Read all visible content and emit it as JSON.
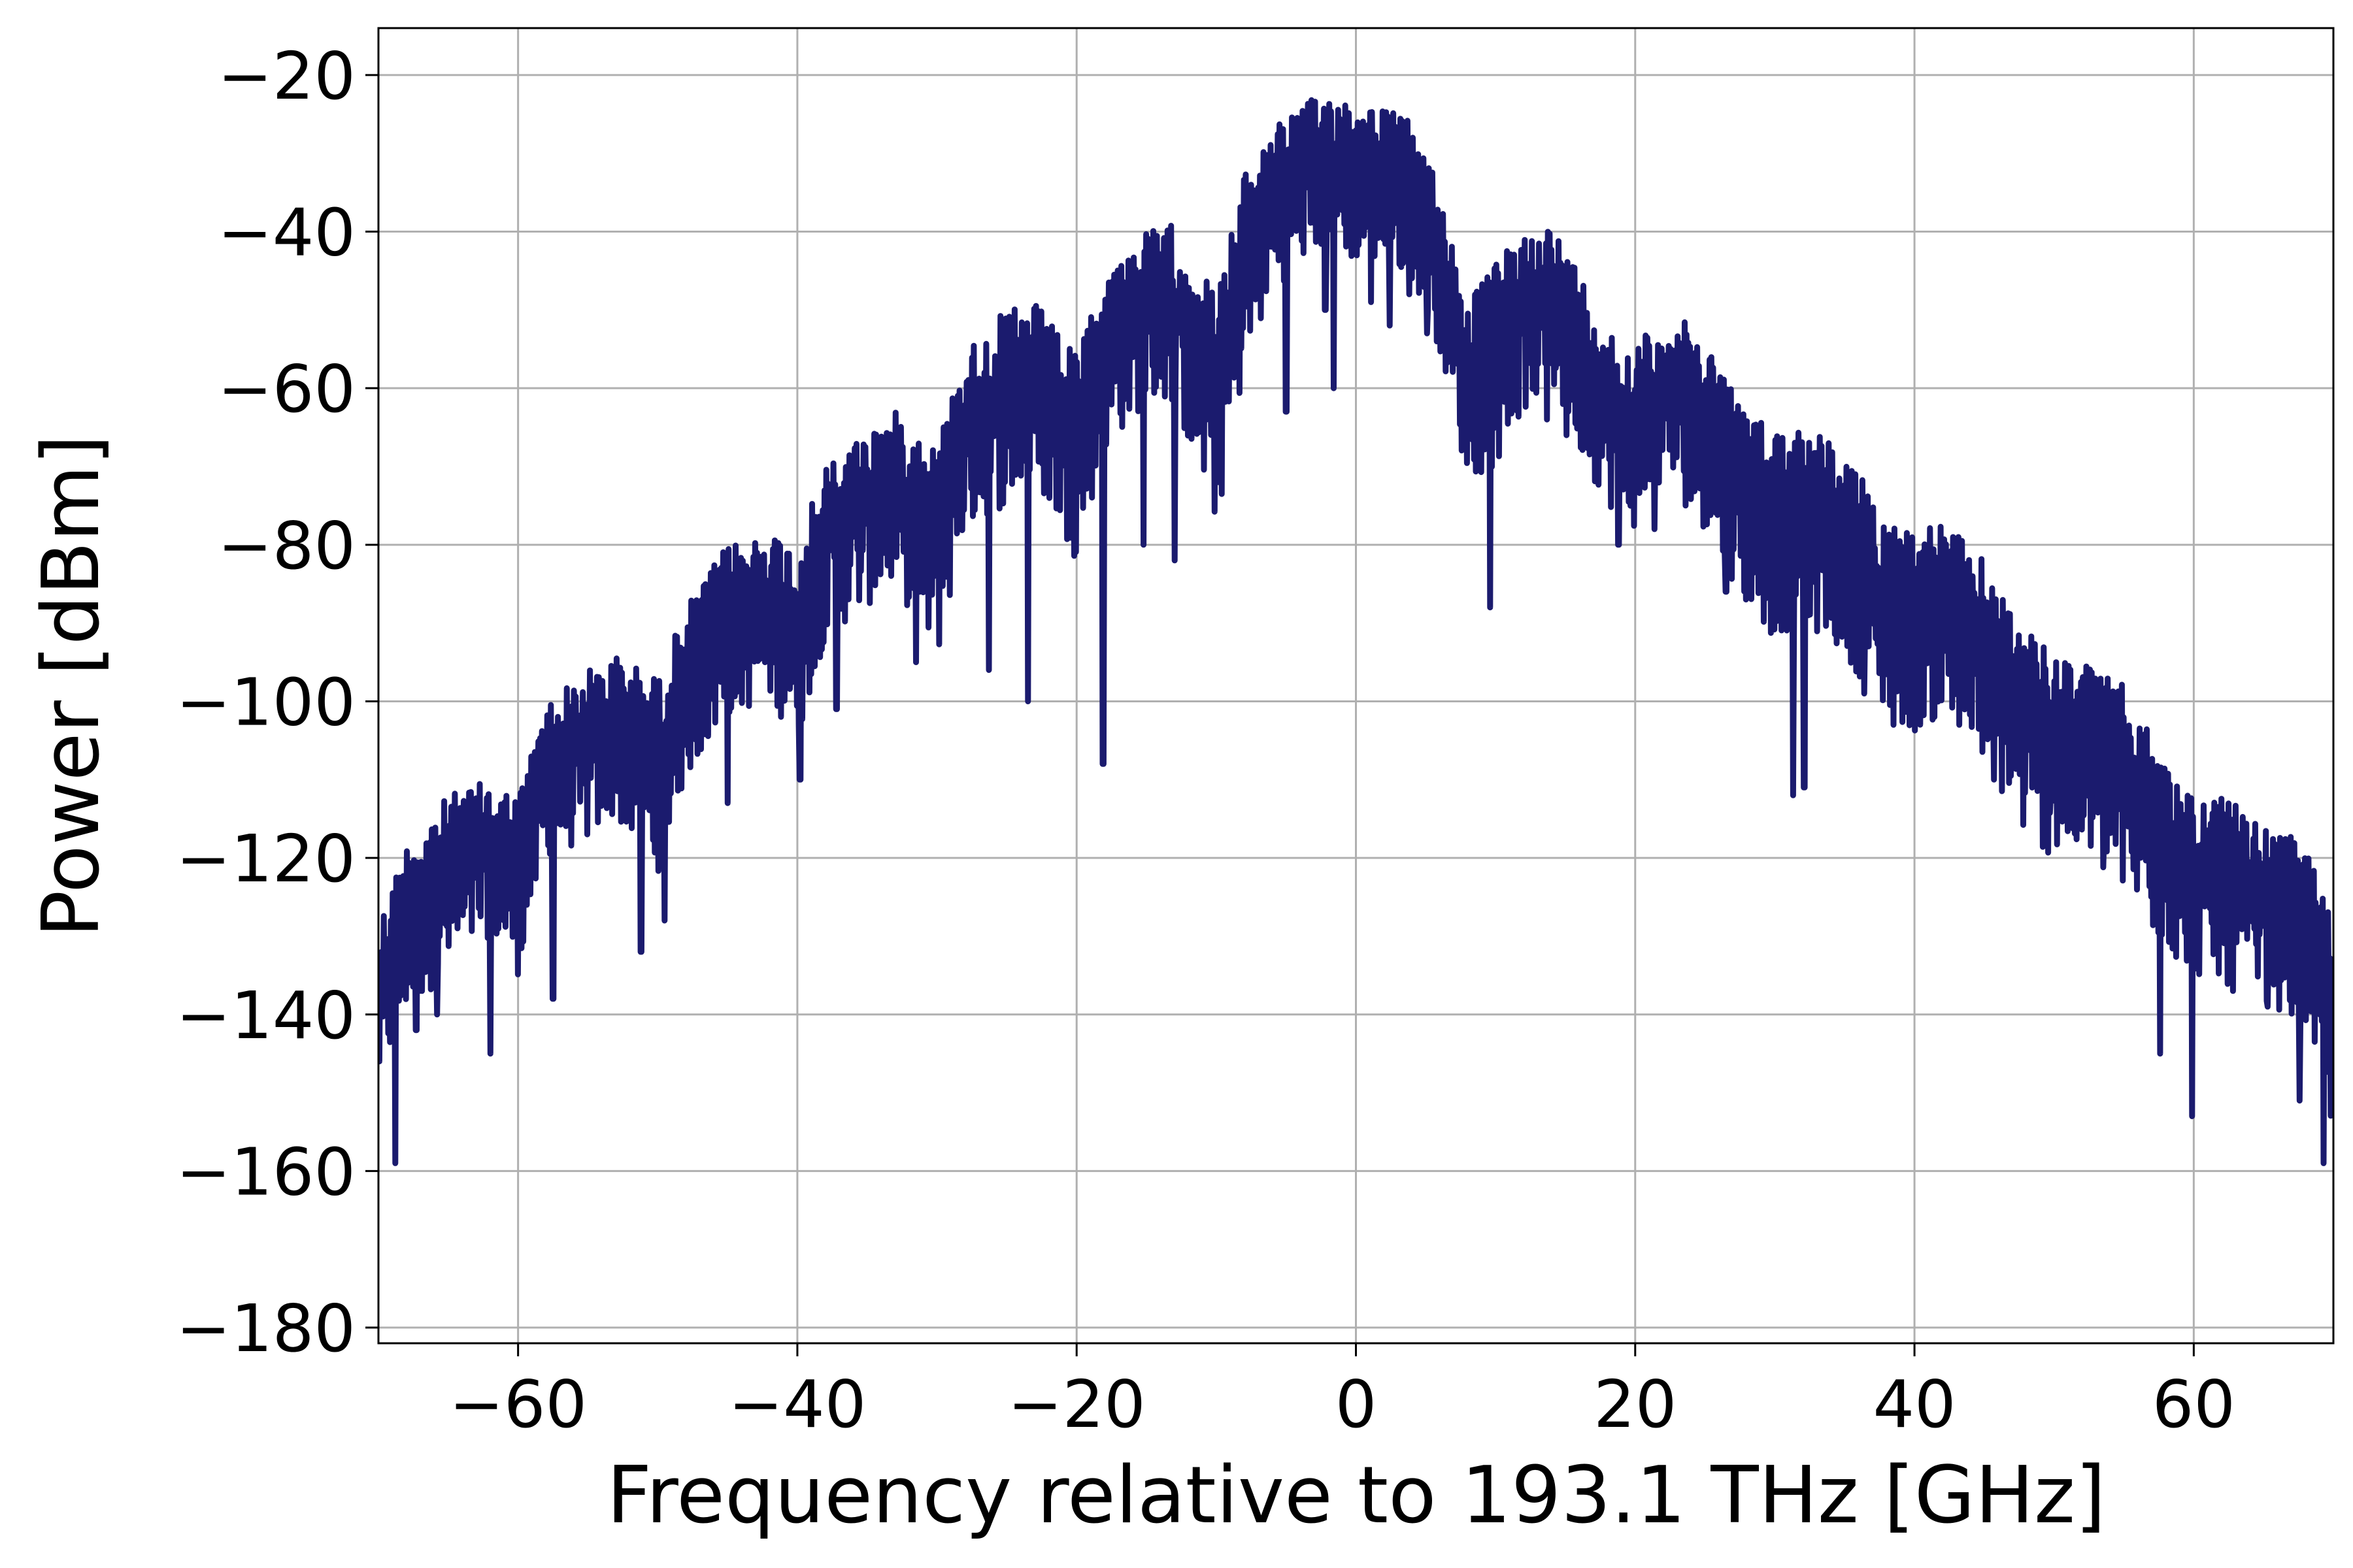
{
  "chart_data": {
    "type": "line",
    "title": "",
    "xlabel": "Frequency relative to 193.1 THz [GHz]",
    "ylabel": "Power [dBm]",
    "xlim": [
      -70,
      70
    ],
    "ylim": [
      -182,
      -14
    ],
    "xticks": [
      -60,
      -40,
      -20,
      0,
      20,
      40,
      60
    ],
    "xtick_labels": [
      "−60",
      "−40",
      "−20",
      "0",
      "20",
      "40",
      "60"
    ],
    "yticks": [
      -180,
      -160,
      -140,
      -120,
      -100,
      -80,
      -60,
      -40,
      -20
    ],
    "ytick_labels": [
      "−180",
      "−160",
      "−140",
      "−120",
      "−100",
      "−80",
      "−60",
      "−40",
      "−20"
    ],
    "grid": true,
    "legend": "none",
    "series": [
      {
        "color": "#1b1b6e",
        "envelope": {
          "x": [
            -70,
            -68,
            -65,
            -62,
            -60,
            -58,
            -55,
            -53,
            -50,
            -48,
            -45,
            -42,
            -40,
            -38,
            -35,
            -33,
            -30,
            -28,
            -25,
            -23,
            -20,
            -18,
            -15,
            -13,
            -10,
            -8,
            -6,
            -4,
            -2,
            0,
            2,
            4,
            6,
            8,
            10,
            12,
            14,
            16,
            18,
            20,
            22,
            25,
            28,
            30,
            32,
            35,
            38,
            40,
            42,
            45,
            48,
            50,
            52,
            55,
            58,
            60,
            62,
            65,
            68,
            70
          ],
          "upper": [
            -128,
            -118,
            -112,
            -110,
            -112,
            -100,
            -96,
            -94,
            -97,
            -88,
            -80,
            -78,
            -80,
            -70,
            -65,
            -63,
            -67,
            -55,
            -50,
            -49,
            -56,
            -45,
            -40,
            -39,
            -48,
            -33,
            -26,
            -24,
            -22,
            -23,
            -24,
            -26,
            -34,
            -49,
            -44,
            -40,
            -39,
            -45,
            -52,
            -55,
            -50,
            -53,
            -63,
            -65,
            -64,
            -68,
            -76,
            -78,
            -77,
            -82,
            -91,
            -94,
            -95,
            -98,
            -108,
            -112,
            -112,
            -116,
            -118,
            -128
          ],
          "lower": [
            -150,
            -140,
            -135,
            -130,
            -135,
            -120,
            -118,
            -115,
            -122,
            -110,
            -102,
            -100,
            -105,
            -92,
            -88,
            -85,
            -95,
            -78,
            -75,
            -72,
            -82,
            -68,
            -62,
            -62,
            -78,
            -58,
            -48,
            -44,
            -42,
            -44,
            -44,
            -46,
            -55,
            -72,
            -70,
            -63,
            -60,
            -68,
            -75,
            -78,
            -72,
            -78,
            -88,
            -92,
            -90,
            -94,
            -102,
            -104,
            -102,
            -108,
            -118,
            -120,
            -120,
            -125,
            -132,
            -135,
            -136,
            -138,
            -142,
            -155
          ]
        },
        "dips": [
          [
            -68.8,
            -159
          ],
          [
            -67.3,
            -142
          ],
          [
            -65.8,
            -140
          ],
          [
            -62.0,
            -145
          ],
          [
            -57.5,
            -138
          ],
          [
            -51.2,
            -132
          ],
          [
            -49.5,
            -128
          ],
          [
            -45.0,
            -113
          ],
          [
            -39.8,
            -110
          ],
          [
            -37.2,
            -101
          ],
          [
            -31.5,
            -95
          ],
          [
            -26.3,
            -96
          ],
          [
            -23.5,
            -100
          ],
          [
            -18.1,
            -108
          ],
          [
            -15.2,
            -80
          ],
          [
            -13.0,
            -82
          ],
          [
            -9.9,
            -72
          ],
          [
            -5.0,
            -63
          ],
          [
            -2.2,
            -50
          ],
          [
            -1.6,
            -60
          ],
          [
            1.1,
            -49
          ],
          [
            2.4,
            -52
          ],
          [
            3.8,
            -48
          ],
          [
            5.1,
            -53
          ],
          [
            9.6,
            -88
          ],
          [
            13.7,
            -64
          ],
          [
            15.1,
            -66
          ],
          [
            18.8,
            -80
          ],
          [
            21.4,
            -78
          ],
          [
            26.5,
            -86
          ],
          [
            31.3,
            -112
          ],
          [
            32.1,
            -111
          ],
          [
            36.4,
            -99
          ],
          [
            38.5,
            -103
          ],
          [
            43.2,
            -103
          ],
          [
            45.7,
            -110
          ],
          [
            49.8,
            -112
          ],
          [
            53.6,
            -117
          ],
          [
            57.6,
            -145
          ],
          [
            59.9,
            -153
          ],
          [
            62.8,
            -137
          ],
          [
            65.3,
            -139
          ],
          [
            67.6,
            -151
          ],
          [
            69.3,
            -159
          ]
        ]
      }
    ]
  }
}
